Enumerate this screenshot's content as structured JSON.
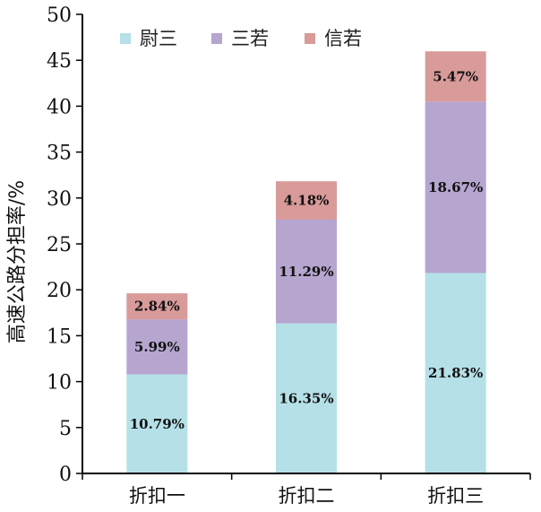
{
  "chart_data": {
    "type": "bar",
    "stacked": true,
    "categories": [
      "折扣一",
      "折扣二",
      "折扣三"
    ],
    "series": [
      {
        "name": "尉三",
        "color": "#b5e0e8",
        "values": [
          10.79,
          16.35,
          21.83
        ],
        "labels": [
          "10.79%",
          "16.35%",
          "21.83%"
        ]
      },
      {
        "name": "三若",
        "color": "#b5a5cf",
        "values": [
          5.99,
          11.29,
          18.67
        ],
        "labels": [
          "5.99%",
          "11.29%",
          "18.67%"
        ]
      },
      {
        "name": "信若",
        "color": "#d99a9a",
        "values": [
          2.84,
          4.18,
          5.47
        ],
        "labels": [
          "2.84%",
          "4.18%",
          "5.47%"
        ]
      }
    ],
    "ylabel": "高速公路分担率/%",
    "ylim": [
      0,
      50
    ],
    "yticks": [
      0,
      5,
      10,
      15,
      20,
      25,
      30,
      35,
      40,
      45,
      50
    ],
    "legend": "top-center",
    "grid": false
  }
}
